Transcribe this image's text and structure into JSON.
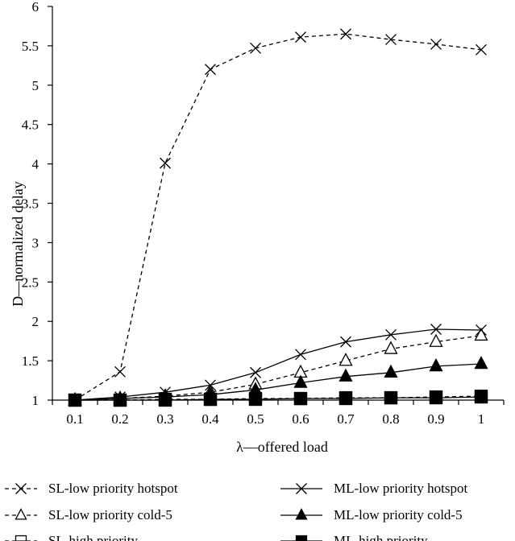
{
  "chart_data": {
    "type": "line",
    "xlabel": "λ—offered load",
    "ylabel": "D—normalized delay",
    "x": [
      0.1,
      0.2,
      0.3,
      0.4,
      0.5,
      0.6,
      0.7,
      0.8,
      0.9,
      1
    ],
    "x_tick_labels": [
      "0.1",
      "0.2",
      "0.3",
      "0.4",
      "0.5",
      "0.6",
      "0.7",
      "0.8",
      "0.9",
      "1"
    ],
    "ylim": [
      1,
      6
    ],
    "y_ticks": [
      1,
      1.5,
      2,
      2.5,
      3,
      3.5,
      4,
      4.5,
      5,
      5.5,
      6
    ],
    "y_tick_labels": [
      "1",
      "1.5",
      "2",
      "2.5",
      "3",
      "3.5",
      "4",
      "4.5",
      "5",
      "5.5",
      "6"
    ],
    "grid": false,
    "legend_position": "bottom",
    "series": [
      {
        "name": "SL-low priority hotspot",
        "line": "dashed",
        "marker": "x",
        "values": [
          1.0,
          1.36,
          4.01,
          5.2,
          5.47,
          5.61,
          5.65,
          5.58,
          5.52,
          5.45
        ]
      },
      {
        "name": "SL-low priority cold-5",
        "line": "dashed",
        "marker": "triangle-open",
        "values": [
          1.0,
          1.02,
          1.05,
          1.1,
          1.2,
          1.35,
          1.5,
          1.65,
          1.74,
          1.82
        ]
      },
      {
        "name": "SL-high priority",
        "line": "dashed",
        "marker": "square-open",
        "values": [
          1.0,
          1.0,
          1.01,
          1.01,
          1.02,
          1.02,
          1.03,
          1.03,
          1.04,
          1.05
        ]
      },
      {
        "name": "ML-low priority hotspot",
        "line": "solid",
        "marker": "x",
        "values": [
          1.0,
          1.04,
          1.1,
          1.19,
          1.35,
          1.58,
          1.74,
          1.83,
          1.9,
          1.89
        ]
      },
      {
        "name": "ML-low priority cold-5",
        "line": "solid",
        "marker": "triangle-filled",
        "values": [
          1.0,
          1.02,
          1.04,
          1.07,
          1.13,
          1.22,
          1.3,
          1.35,
          1.43,
          1.46
        ]
      },
      {
        "name": "ML-high priority",
        "line": "solid",
        "marker": "square-filled",
        "values": [
          1.0,
          1.0,
          1.0,
          1.01,
          1.01,
          1.02,
          1.02,
          1.03,
          1.03,
          1.04
        ]
      }
    ]
  }
}
